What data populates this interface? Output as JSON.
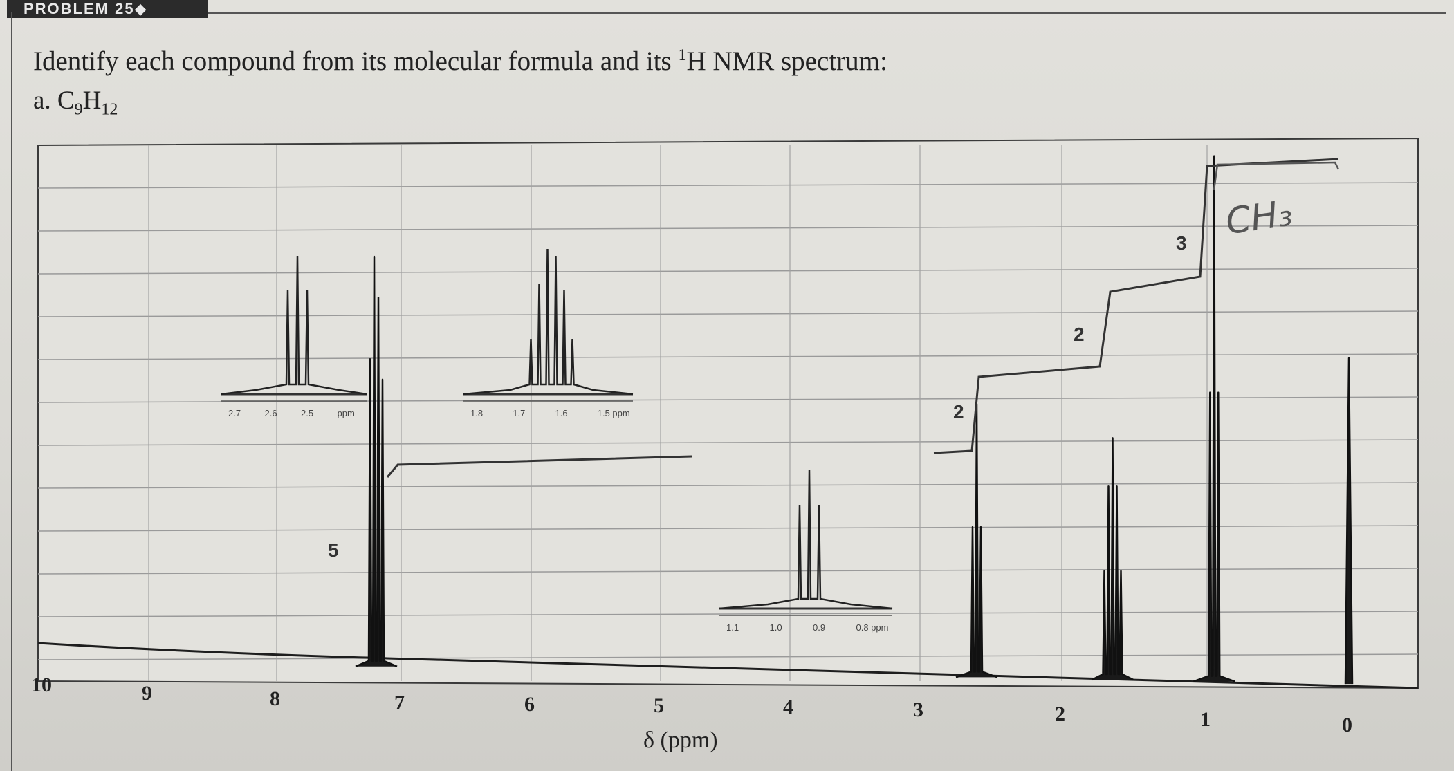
{
  "header": {
    "banner": "PROBLEM 25◆",
    "prompt_pre": "Identify each compound from its molecular formula and its ",
    "prompt_sup": "1",
    "prompt_post": "H NMR spectrum:",
    "part_label": "a. C",
    "formula_sub1": "9",
    "formula_mid": "H",
    "formula_sub2": "12"
  },
  "spectrum": {
    "x_axis_title": "δ (ppm)",
    "integrations": [
      "5",
      "2",
      "2",
      "3"
    ],
    "handwritten_note": "CH₃",
    "inset_tick_labels": [
      [
        "2.7",
        "2.6",
        "2.5",
        "ppm"
      ],
      [
        "1.8",
        "1.7",
        "1.6",
        "1.5 ppm"
      ],
      [
        "1.1",
        "1.0",
        "0.9",
        "0.8 ppm"
      ]
    ]
  },
  "chart_data": {
    "type": "line",
    "xlabel": "δ (ppm)",
    "ylabel": "",
    "x_reversed": true,
    "xlim": [
      10,
      0
    ],
    "x_ticks": [
      10,
      9,
      8,
      7,
      6,
      5,
      4,
      3,
      2,
      1,
      0
    ],
    "series": [
      {
        "peaks": [
          {
            "shift": 7.2,
            "relative_height": 0.78,
            "integration": "5",
            "multiplicity": "multiplet"
          },
          {
            "shift": 2.6,
            "relative_height": 0.52,
            "integration": "2",
            "multiplicity": "triplet"
          },
          {
            "shift": 1.65,
            "relative_height": 0.46,
            "integration": "2",
            "multiplicity": "sextet"
          },
          {
            "shift": 0.95,
            "relative_height": 1.0,
            "integration": "3",
            "multiplicity": "triplet"
          },
          {
            "shift": 0.0,
            "relative_height": 0.62,
            "integration": "",
            "multiplicity": "singlet (TMS)"
          }
        ]
      }
    ],
    "grid": true
  }
}
